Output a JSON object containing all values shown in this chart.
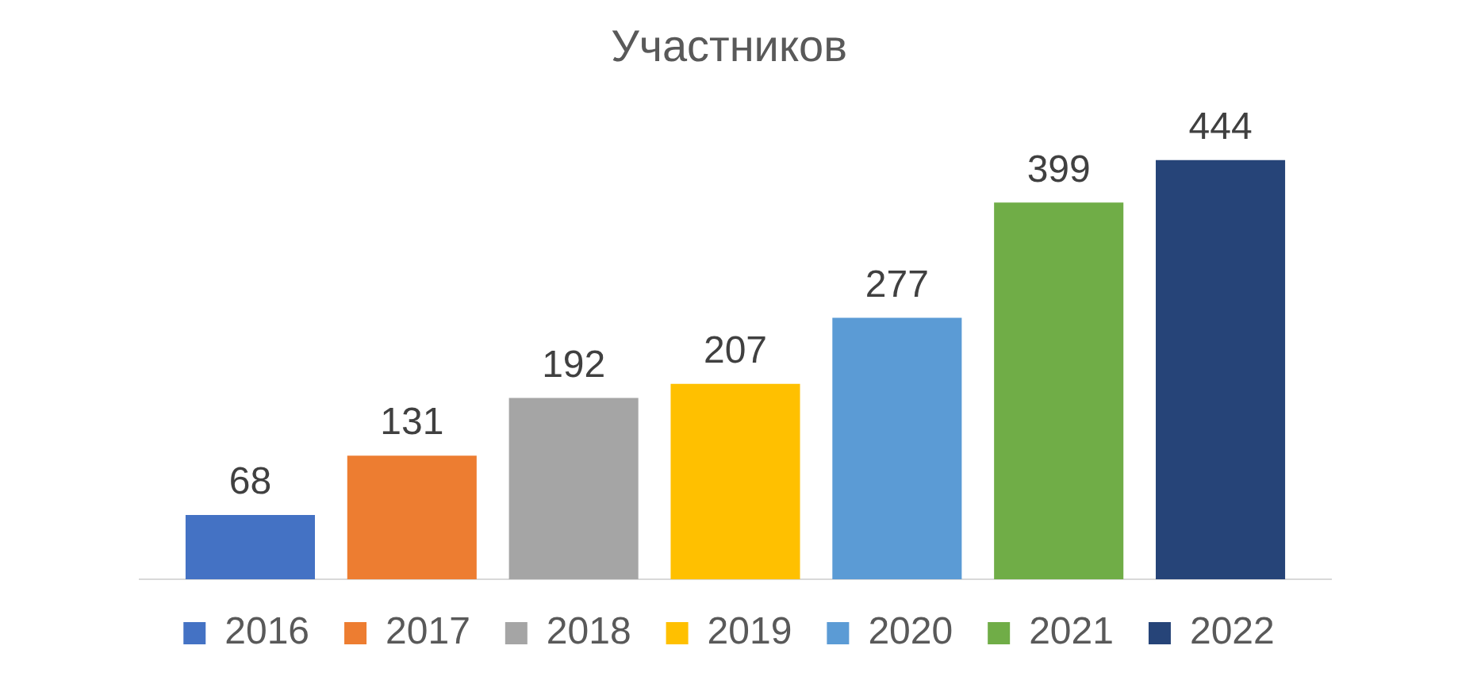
{
  "chart_data": {
    "type": "bar",
    "title": "Участников",
    "categories": [
      null
    ],
    "series": [
      {
        "name": "2016",
        "color": "#4472c4",
        "values": [
          68
        ]
      },
      {
        "name": "2017",
        "color": "#ed7d31",
        "values": [
          131
        ]
      },
      {
        "name": "2018",
        "color": "#a5a5a5",
        "values": [
          192
        ]
      },
      {
        "name": "2019",
        "color": "#ffc000",
        "values": [
          207
        ]
      },
      {
        "name": "2020",
        "color": "#5b9bd5",
        "values": [
          277
        ]
      },
      {
        "name": "2021",
        "color": "#70ad47",
        "values": [
          399
        ]
      },
      {
        "name": "2022",
        "color": "#264478",
        "values": [
          444
        ]
      }
    ],
    "data_labels": true,
    "legend": "bottom",
    "grid": false
  }
}
